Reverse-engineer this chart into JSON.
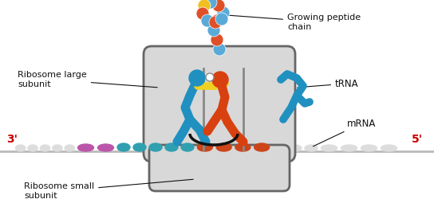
{
  "bg_color": "#ffffff",
  "labels": {
    "growing_peptide": "Growing peptide\nchain",
    "trna": "tRNA",
    "mrna": "mRNA",
    "large_subunit": "Ribosome large\nsubunit",
    "small_subunit": "Ribosome small\nsubunit",
    "three_prime": "3'",
    "five_prime": "5'"
  },
  "peptide_blue": "#5aaad8",
  "peptide_red": "#e05028",
  "peptide_yellow": "#f0c020",
  "trna_blue": "#2090c0",
  "trna_red": "#d84010",
  "mrna_teal": "#30a0b0",
  "mrna_pink": "#bb55aa",
  "mrna_red": "#cc4418",
  "mrna_white": "#e0e0e0",
  "ribo_fill": "#d8d8d8",
  "ribo_edge": "#666666",
  "label_color": "#111111",
  "prime_color": "#cc0000"
}
